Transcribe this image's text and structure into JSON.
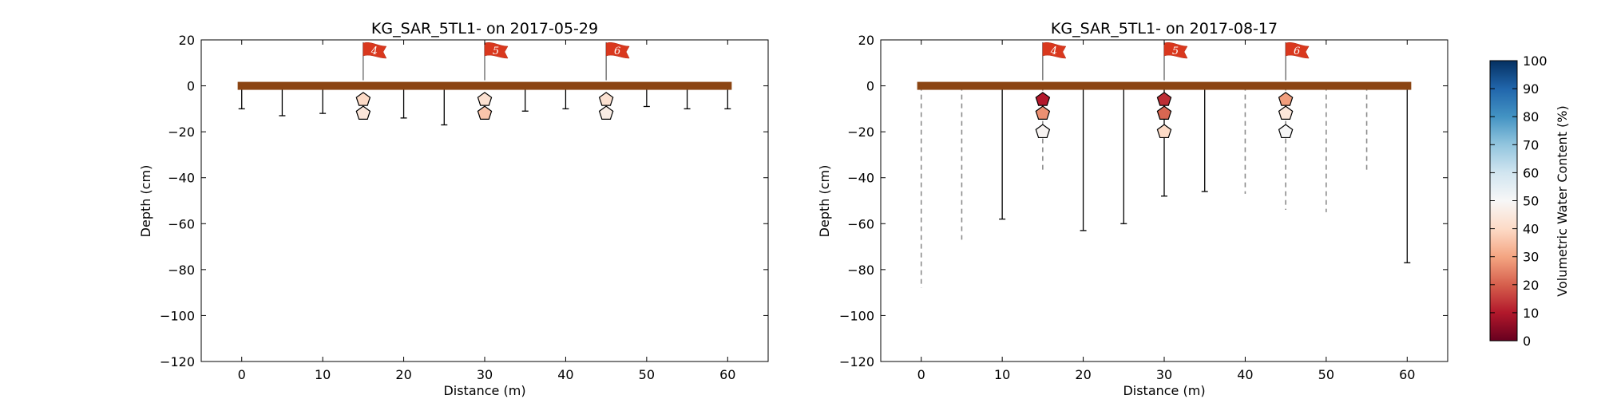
{
  "chart_data": [
    {
      "type": "scatter",
      "title": "KG_SAR_5TL1-  on 2017-05-29",
      "xlabel": "Distance (m)",
      "ylabel": "Depth (cm)",
      "xlim": [
        -5,
        65
      ],
      "ylim": [
        -120,
        20
      ],
      "xticks": [
        "0",
        "10",
        "20",
        "30",
        "40",
        "50",
        "60"
      ],
      "yticks": [
        "20",
        "0",
        "−20",
        "−40",
        "−60",
        "−80",
        "−100",
        "−120"
      ],
      "grid": false,
      "surface_bar": {
        "x_start": -0.5,
        "x_end": 60.5,
        "depth": 0,
        "color": "#8B4513"
      },
      "probe_depths": [
        {
          "x": 0,
          "depth": -10,
          "style": "solid"
        },
        {
          "x": 5,
          "depth": -13,
          "style": "solid"
        },
        {
          "x": 10,
          "depth": -12,
          "style": "solid"
        },
        {
          "x": 20,
          "depth": -14,
          "style": "solid"
        },
        {
          "x": 25,
          "depth": -17,
          "style": "solid"
        },
        {
          "x": 35,
          "depth": -11,
          "style": "solid"
        },
        {
          "x": 40,
          "depth": -10,
          "style": "solid"
        },
        {
          "x": 50,
          "depth": -9,
          "style": "solid"
        },
        {
          "x": 55,
          "depth": -10,
          "style": "solid"
        },
        {
          "x": 60,
          "depth": -10,
          "style": "solid"
        }
      ],
      "flags": [
        {
          "x": 15,
          "label": "4"
        },
        {
          "x": 30,
          "label": "5"
        },
        {
          "x": 45,
          "label": "6"
        }
      ],
      "sensors": [
        {
          "x": 15,
          "depth": -6,
          "vwc": 40
        },
        {
          "x": 15,
          "depth": -12,
          "vwc": 44
        },
        {
          "x": 30,
          "depth": -6,
          "vwc": 42
        },
        {
          "x": 30,
          "depth": -12,
          "vwc": 36
        },
        {
          "x": 45,
          "depth": -6,
          "vwc": 42
        },
        {
          "x": 45,
          "depth": -12,
          "vwc": 46
        }
      ]
    },
    {
      "type": "scatter",
      "title": "KG_SAR_5TL1-  on 2017-08-17",
      "xlabel": "Distance (m)",
      "ylabel": "Depth (cm)",
      "xlim": [
        -5,
        65
      ],
      "ylim": [
        -120,
        20
      ],
      "xticks": [
        "0",
        "10",
        "20",
        "30",
        "40",
        "50",
        "60"
      ],
      "yticks": [
        "20",
        "0",
        "−20",
        "−40",
        "−60",
        "−80",
        "−100",
        "−120"
      ],
      "grid": false,
      "surface_bar": {
        "x_start": -0.5,
        "x_end": 60.5,
        "depth": 0,
        "color": "#8B4513"
      },
      "probe_depths": [
        {
          "x": 0,
          "depth": -88,
          "style": "dashed"
        },
        {
          "x": 5,
          "depth": -67,
          "style": "dashed"
        },
        {
          "x": 10,
          "depth": -58,
          "style": "solid"
        },
        {
          "x": 15,
          "depth": -38,
          "style": "dashed"
        },
        {
          "x": 20,
          "depth": -63,
          "style": "solid"
        },
        {
          "x": 25,
          "depth": -60,
          "style": "solid"
        },
        {
          "x": 30,
          "depth": -48,
          "style": "solid"
        },
        {
          "x": 35,
          "depth": -46,
          "style": "solid"
        },
        {
          "x": 40,
          "depth": -47,
          "style": "dashed"
        },
        {
          "x": 45,
          "depth": -54,
          "style": "dashed"
        },
        {
          "x": 50,
          "depth": -55,
          "style": "dashed"
        },
        {
          "x": 55,
          "depth": -38,
          "style": "dashed"
        },
        {
          "x": 60,
          "depth": -77,
          "style": "solid"
        }
      ],
      "flags": [
        {
          "x": 15,
          "label": "4"
        },
        {
          "x": 30,
          "label": "5"
        },
        {
          "x": 45,
          "label": "6"
        }
      ],
      "sensors": [
        {
          "x": 15,
          "depth": -6,
          "vwc": 10
        },
        {
          "x": 15,
          "depth": -12,
          "vwc": 27
        },
        {
          "x": 15,
          "depth": -20,
          "vwc": 49
        },
        {
          "x": 30,
          "depth": -6,
          "vwc": 13
        },
        {
          "x": 30,
          "depth": -12,
          "vwc": 21
        },
        {
          "x": 30,
          "depth": -20,
          "vwc": 40
        },
        {
          "x": 45,
          "depth": -6,
          "vwc": 29
        },
        {
          "x": 45,
          "depth": -12,
          "vwc": 44
        },
        {
          "x": 45,
          "depth": -20,
          "vwc": 50
        }
      ]
    }
  ],
  "colorbar": {
    "label": "Volumetric Water Content (%)",
    "min": 0,
    "max": 100,
    "ticks": [
      "0",
      "10",
      "20",
      "30",
      "40",
      "50",
      "60",
      "70",
      "80",
      "90",
      "100"
    ],
    "colormap": "RdBu",
    "colors": [
      "#67001f",
      "#b2182b",
      "#d6604d",
      "#f4a582",
      "#fddbc7",
      "#f7f7f7",
      "#d1e5f0",
      "#92c5de",
      "#4393c3",
      "#2166ac",
      "#053061"
    ]
  }
}
